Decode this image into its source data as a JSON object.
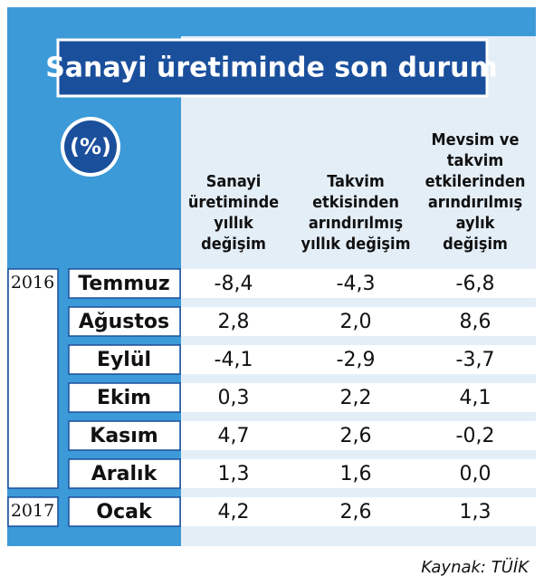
{
  "title": "Sanayi üretiminde son durum",
  "unit": "(%)",
  "columns": [
    [
      "Sanayi",
      "üretiminde",
      "yıllık",
      "değişim"
    ],
    [
      "Takvim",
      "etkisinden",
      "arındırılmış",
      "yıllık değişim"
    ],
    [
      "Mevsim ve",
      "takvim",
      "etkilerinden",
      "arındırılmış",
      "aylık",
      "değişim"
    ]
  ],
  "groups": [
    {
      "year": "2016",
      "rows": [
        {
          "month": "Temmuz",
          "values": [
            "-8,4",
            "-4,3",
            "-6,8"
          ]
        },
        {
          "month": "Ağustos",
          "values": [
            "2,8",
            "2,0",
            "8,6"
          ]
        },
        {
          "month": "Eylül",
          "values": [
            "-4,1",
            "-2,9",
            "-3,7"
          ]
        },
        {
          "month": "Ekim",
          "values": [
            "0,3",
            "2,2",
            "4,1"
          ]
        },
        {
          "month": "Kasım",
          "values": [
            "4,7",
            "2,6",
            "-0,2"
          ]
        },
        {
          "month": "Aralık",
          "values": [
            "1,3",
            "1,6",
            "0,0"
          ]
        }
      ]
    },
    {
      "year": "2017",
      "rows": [
        {
          "month": "Ocak",
          "values": [
            "4,2",
            "2,6",
            "1,3"
          ]
        }
      ]
    }
  ],
  "source": "Kaynak: TÜİK",
  "negative_color": "#c0262d"
}
